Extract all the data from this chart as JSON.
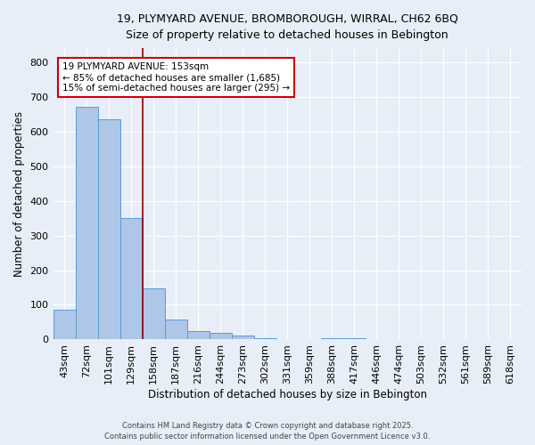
{
  "title_line1": "19, PLYMYARD AVENUE, BROMBOROUGH, WIRRAL, CH62 6BQ",
  "title_line2": "Size of property relative to detached houses in Bebington",
  "xlabel": "Distribution of detached houses by size in Bebington",
  "ylabel": "Number of detached properties",
  "bar_labels": [
    "43sqm",
    "72sqm",
    "101sqm",
    "129sqm",
    "158sqm",
    "187sqm",
    "216sqm",
    "244sqm",
    "273sqm",
    "302sqm",
    "331sqm",
    "359sqm",
    "388sqm",
    "417sqm",
    "446sqm",
    "474sqm",
    "503sqm",
    "532sqm",
    "561sqm",
    "589sqm",
    "618sqm"
  ],
  "bar_values": [
    85,
    670,
    635,
    350,
    148,
    58,
    25,
    18,
    12,
    5,
    0,
    0,
    5,
    5,
    0,
    0,
    0,
    0,
    0,
    0,
    0
  ],
  "bar_color": "#aec6e8",
  "bar_edge_color": "#5b9bd5",
  "background_color": "#e8eef8",
  "grid_color": "#ffffff",
  "vline_color": "#8b0000",
  "annotation_text": "19 PLYMYARD AVENUE: 153sqm\n← 85% of detached houses are smaller (1,685)\n15% of semi-detached houses are larger (295) →",
  "annotation_box_facecolor": "#ffffff",
  "annotation_box_edgecolor": "#cc0000",
  "ylim": [
    0,
    840
  ],
  "yticks": [
    0,
    100,
    200,
    300,
    400,
    500,
    600,
    700,
    800
  ],
  "footer_line1": "Contains HM Land Registry data © Crown copyright and database right 2025.",
  "footer_line2": "Contains public sector information licensed under the Open Government Licence v3.0."
}
